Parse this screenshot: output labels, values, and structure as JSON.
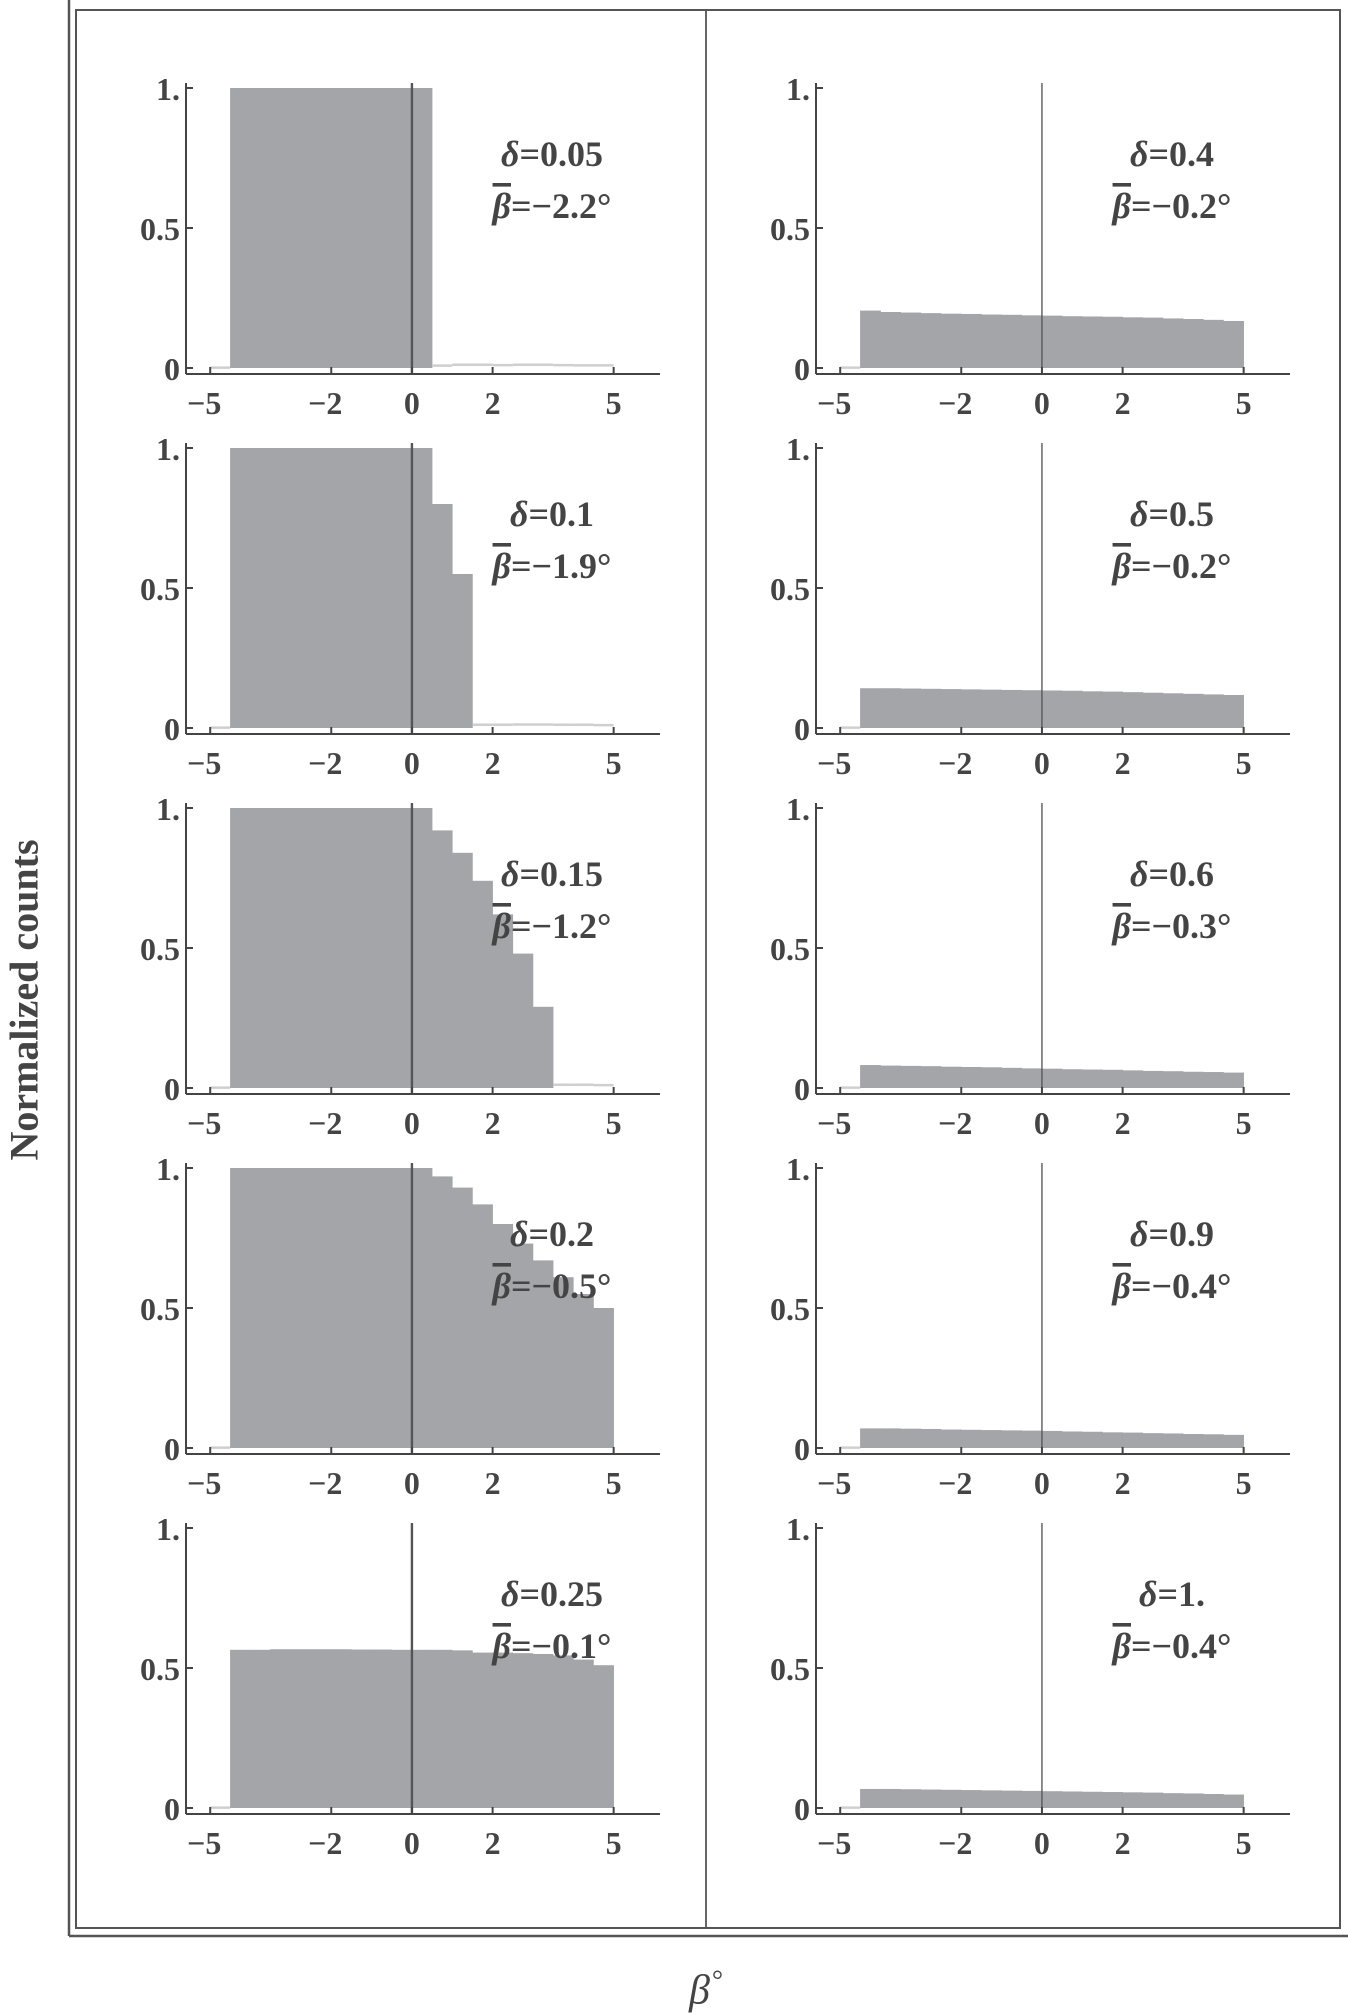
{
  "figure": {
    "ylabel": "Normalized counts",
    "xlabel": "β",
    "xlabel_suffix": "°",
    "colors": {
      "bar": "#a4a5a8",
      "axis": "#444444",
      "text": "#444444",
      "zero_line": "#555555",
      "frame": "#555555"
    }
  },
  "chart_data": [
    {
      "type": "bar",
      "panel": "left-1",
      "column": 0,
      "row": 0,
      "annotation": {
        "delta": "δ=0.05",
        "beta_mean": "β=−2.2°"
      },
      "xlim": [
        -5.6,
        6
      ],
      "ylim": [
        0,
        1
      ],
      "xticks": [
        -5,
        -2,
        0,
        2,
        5
      ],
      "yticks": [
        "0",
        "0.5",
        "1."
      ],
      "bin_width": 0.5,
      "bins_start": -5,
      "values": [
        0.005,
        1.0,
        1.0,
        1.0,
        1.0,
        1.0,
        1.0,
        1.0,
        1.0,
        1.0,
        1.0,
        0.012,
        0.015,
        0.015,
        0.014,
        0.015,
        0.015,
        0.014,
        0.013,
        0.013
      ]
    },
    {
      "type": "bar",
      "panel": "left-2",
      "column": 0,
      "row": 1,
      "annotation": {
        "delta": "δ=0.1",
        "beta_mean": "β=−1.9°"
      },
      "xlim": [
        -5.6,
        6
      ],
      "ylim": [
        0,
        1
      ],
      "xticks": [
        -5,
        -2,
        0,
        2,
        5
      ],
      "yticks": [
        "0",
        "0.5",
        "1."
      ],
      "bin_width": 0.5,
      "bins_start": -5,
      "values": [
        0.005,
        1.0,
        1.0,
        1.0,
        1.0,
        1.0,
        1.0,
        1.0,
        1.0,
        1.0,
        1.0,
        0.8,
        0.55,
        0.015,
        0.015,
        0.016,
        0.016,
        0.015,
        0.015,
        0.014
      ]
    },
    {
      "type": "bar",
      "panel": "left-3",
      "column": 0,
      "row": 2,
      "annotation": {
        "delta": "δ=0.15",
        "beta_mean": "β=−1.2°"
      },
      "xlim": [
        -5.6,
        6
      ],
      "ylim": [
        0,
        1
      ],
      "xticks": [
        -5,
        -2,
        0,
        2,
        5
      ],
      "yticks": [
        "0",
        "0.5",
        "1."
      ],
      "bin_width": 0.5,
      "bins_start": -5,
      "values": [
        0.005,
        1.0,
        1.0,
        1.0,
        1.0,
        1.0,
        1.0,
        1.0,
        1.0,
        1.0,
        1.0,
        0.92,
        0.84,
        0.74,
        0.62,
        0.48,
        0.29,
        0.015,
        0.015,
        0.014
      ]
    },
    {
      "type": "bar",
      "panel": "left-4",
      "column": 0,
      "row": 3,
      "annotation": {
        "delta": "δ=0.2",
        "beta_mean": "β=−0.5°"
      },
      "xlim": [
        -5.6,
        6
      ],
      "ylim": [
        0,
        1
      ],
      "xticks": [
        -5,
        -2,
        0,
        2,
        5
      ],
      "yticks": [
        "0",
        "0.5",
        "1."
      ],
      "bin_width": 0.5,
      "bins_start": -5,
      "values": [
        0.005,
        1.0,
        1.0,
        1.0,
        1.0,
        1.0,
        1.0,
        1.0,
        1.0,
        1.0,
        1.0,
        0.97,
        0.93,
        0.87,
        0.8,
        0.73,
        0.67,
        0.61,
        0.55,
        0.5
      ]
    },
    {
      "type": "bar",
      "panel": "left-5",
      "column": 0,
      "row": 4,
      "annotation": {
        "delta": "δ=0.25",
        "beta_mean": "β=−0.1°"
      },
      "xlim": [
        -5.6,
        6
      ],
      "ylim": [
        0,
        1
      ],
      "xticks": [
        -5,
        -2,
        0,
        2,
        5
      ],
      "yticks": [
        "0",
        "0.5",
        "1."
      ],
      "bin_width": 0.5,
      "bins_start": -5,
      "values": [
        0.005,
        0.565,
        0.565,
        0.567,
        0.567,
        0.567,
        0.567,
        0.566,
        0.566,
        0.565,
        0.565,
        0.565,
        0.563,
        0.555,
        0.555,
        0.553,
        0.55,
        0.545,
        0.53,
        0.51
      ]
    },
    {
      "type": "bar",
      "panel": "right-1",
      "column": 1,
      "row": 0,
      "annotation": {
        "delta": "δ=0.4",
        "beta_mean": "β=−0.2°"
      },
      "xlim": [
        -5.6,
        6
      ],
      "ylim": [
        0,
        1
      ],
      "xticks": [
        -5,
        -2,
        0,
        2,
        5
      ],
      "yticks": [
        "0",
        "0.5",
        "1."
      ],
      "bin_width": 0.5,
      "bins_start": -5,
      "values": [
        0.005,
        0.205,
        0.2,
        0.198,
        0.196,
        0.194,
        0.193,
        0.191,
        0.19,
        0.188,
        0.187,
        0.185,
        0.184,
        0.183,
        0.181,
        0.18,
        0.177,
        0.175,
        0.172,
        0.168
      ]
    },
    {
      "type": "bar",
      "panel": "right-2",
      "column": 1,
      "row": 1,
      "annotation": {
        "delta": "δ=0.5",
        "beta_mean": "β=−0.2°"
      },
      "xlim": [
        -5.6,
        6
      ],
      "ylim": [
        0,
        1
      ],
      "xticks": [
        -5,
        -2,
        0,
        2,
        5
      ],
      "yticks": [
        "0",
        "0.5",
        "1."
      ],
      "bin_width": 0.5,
      "bins_start": -5,
      "values": [
        0.005,
        0.142,
        0.142,
        0.141,
        0.14,
        0.139,
        0.138,
        0.137,
        0.136,
        0.135,
        0.134,
        0.133,
        0.131,
        0.13,
        0.128,
        0.126,
        0.124,
        0.122,
        0.12,
        0.118
      ]
    },
    {
      "type": "bar",
      "panel": "right-3",
      "column": 1,
      "row": 2,
      "annotation": {
        "delta": "δ=0.6",
        "beta_mean": "β=−0.3°"
      },
      "xlim": [
        -5.6,
        6
      ],
      "ylim": [
        0,
        1
      ],
      "xticks": [
        -5,
        -2,
        0,
        2,
        5
      ],
      "yticks": [
        "0",
        "0.5",
        "1."
      ],
      "bin_width": 0.5,
      "bins_start": -5,
      "values": [
        0.005,
        0.082,
        0.08,
        0.079,
        0.078,
        0.076,
        0.075,
        0.074,
        0.072,
        0.07,
        0.069,
        0.067,
        0.066,
        0.065,
        0.063,
        0.061,
        0.06,
        0.058,
        0.057,
        0.055
      ]
    },
    {
      "type": "bar",
      "panel": "right-4",
      "column": 1,
      "row": 3,
      "annotation": {
        "delta": "δ=0.9",
        "beta_mean": "β=−0.4°"
      },
      "xlim": [
        -5.6,
        6
      ],
      "ylim": [
        0,
        1
      ],
      "xticks": [
        -5,
        -2,
        0,
        2,
        5
      ],
      "yticks": [
        "0",
        "0.5",
        "1."
      ],
      "bin_width": 0.5,
      "bins_start": -5,
      "values": [
        0.005,
        0.07,
        0.07,
        0.069,
        0.068,
        0.066,
        0.065,
        0.064,
        0.063,
        0.062,
        0.061,
        0.059,
        0.058,
        0.056,
        0.055,
        0.053,
        0.052,
        0.05,
        0.049,
        0.047
      ]
    },
    {
      "type": "bar",
      "panel": "right-5",
      "column": 1,
      "row": 4,
      "annotation": {
        "delta": "δ=1.",
        "beta_mean": "β=−0.4°"
      },
      "xlim": [
        -5.6,
        6
      ],
      "ylim": [
        0,
        1
      ],
      "xticks": [
        -5,
        -2,
        0,
        2,
        5
      ],
      "yticks": [
        "0",
        "0.5",
        "1."
      ],
      "bin_width": 0.5,
      "bins_start": -5,
      "values": [
        0.005,
        0.068,
        0.068,
        0.067,
        0.066,
        0.065,
        0.064,
        0.063,
        0.062,
        0.061,
        0.06,
        0.059,
        0.058,
        0.057,
        0.056,
        0.055,
        0.053,
        0.052,
        0.05,
        0.048
      ]
    }
  ]
}
